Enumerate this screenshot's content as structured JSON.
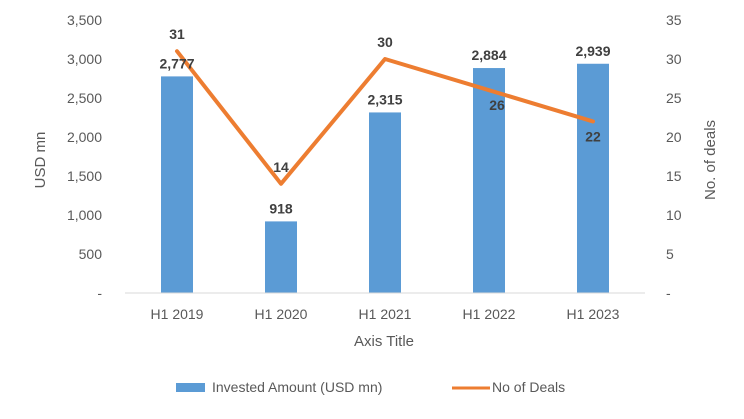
{
  "chart_data": {
    "type": "bar+line",
    "categories": [
      "H1 2019",
      "H1 2020",
      "H1 2021",
      "H1 2022",
      "H1 2023"
    ],
    "series": [
      {
        "name": "Invested Amount (USD mn)",
        "type": "bar",
        "axis": "left",
        "values": [
          2777,
          918,
          2315,
          2884,
          2939
        ],
        "labels": [
          "2,777",
          "918",
          "2,315",
          "2,884",
          "2,939"
        ],
        "color": "#5b9bd5"
      },
      {
        "name": "No of Deals",
        "type": "line",
        "axis": "right",
        "values": [
          31,
          14,
          30,
          26,
          22
        ],
        "labels": [
          "31",
          "14",
          "30",
          "26",
          "22"
        ],
        "color": "#ed7d31"
      }
    ],
    "xlabel": "Axis Title",
    "ylabel": "USD mn",
    "y2label": "No. of deals",
    "ylim": [
      0,
      3500
    ],
    "y2lim": [
      0,
      35
    ],
    "yticks": [
      "-",
      "500",
      "1,000",
      "1,500",
      "2,000",
      "2,500",
      "3,000",
      "3,500"
    ],
    "y2ticks": [
      "-",
      "5",
      "10",
      "15",
      "20",
      "25",
      "30",
      "35"
    ],
    "legend_position": "bottom"
  }
}
